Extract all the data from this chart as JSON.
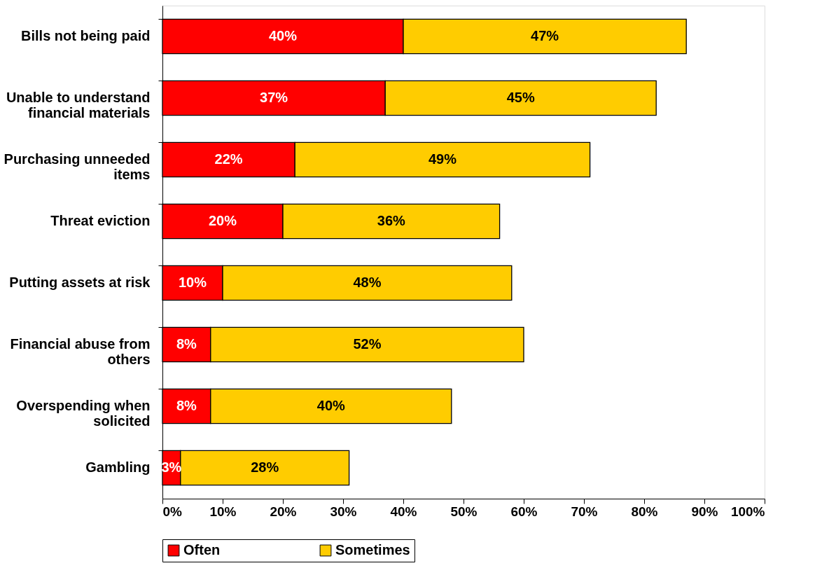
{
  "chart_data": {
    "type": "bar",
    "orientation": "horizontal",
    "stacked": true,
    "categories": [
      "Bills not being paid",
      "Unable to understand\nfinancial materials",
      "Purchasing unneeded\nitems",
      "Threat eviction",
      "Putting assets at risk",
      "Financial abuse from\nothers",
      "Overspending when\nsolicited",
      "Gambling"
    ],
    "series": [
      {
        "name": "Often",
        "color": "#ff0000",
        "values": [
          40,
          37,
          22,
          20,
          10,
          8,
          8,
          3
        ],
        "value_labels": [
          "40%",
          "37%",
          "22%",
          "20%",
          "10%",
          "8%",
          "8%",
          "3%"
        ]
      },
      {
        "name": "Sometimes",
        "color": "#ffcc00",
        "values": [
          47,
          45,
          49,
          36,
          48,
          52,
          40,
          28
        ],
        "value_labels": [
          "47%",
          "45%",
          "49%",
          "36%",
          "48%",
          "52%",
          "40%",
          "28%"
        ]
      }
    ],
    "xlim": [
      0,
      100
    ],
    "xticks": [
      {
        "value": 0,
        "label": "0%"
      },
      {
        "value": 10,
        "label": "10%"
      },
      {
        "value": 20,
        "label": "20%"
      },
      {
        "value": 30,
        "label": "30%"
      },
      {
        "value": 40,
        "label": "40%"
      },
      {
        "value": 50,
        "label": "50%"
      },
      {
        "value": 60,
        "label": "60%"
      },
      {
        "value": 70,
        "label": "70%"
      },
      {
        "value": 80,
        "label": "80%"
      },
      {
        "value": 90,
        "label": "90%"
      },
      {
        "value": 100,
        "label": "100%"
      }
    ],
    "grid": false,
    "legend": "bottom"
  }
}
